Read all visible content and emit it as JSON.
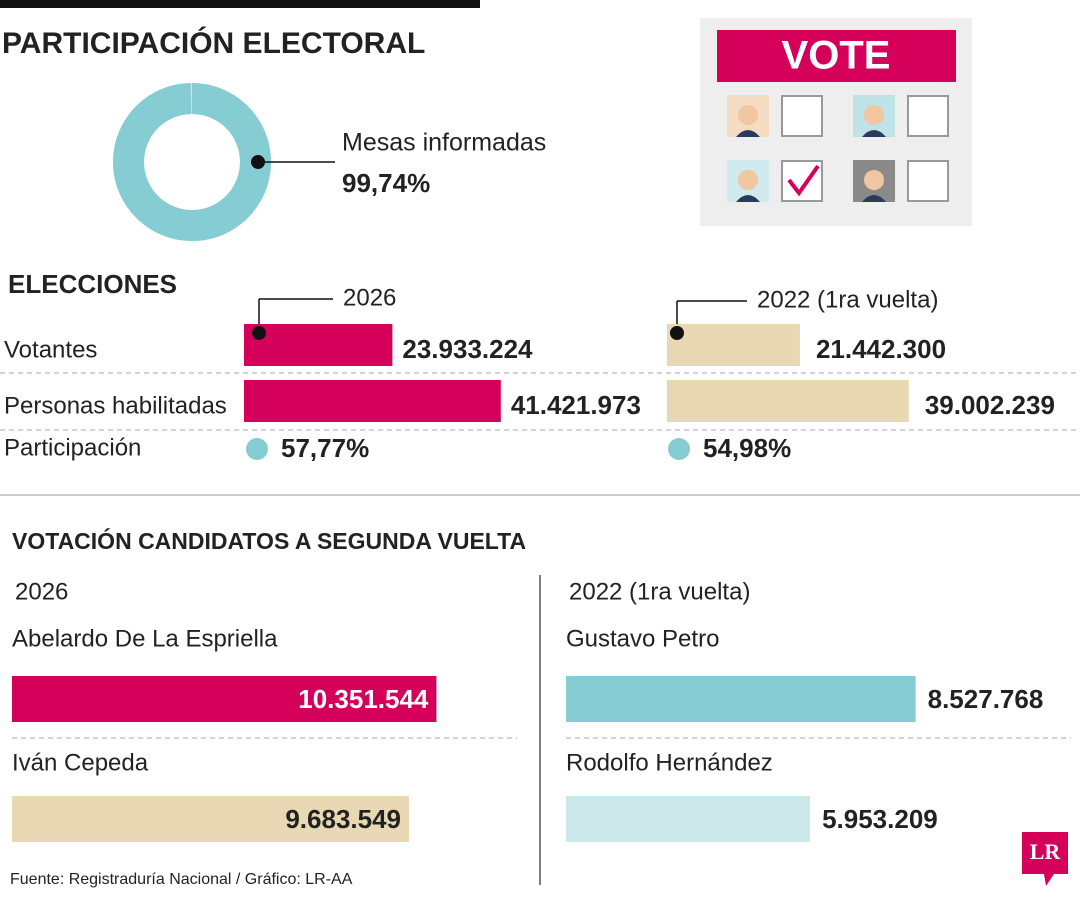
{
  "title": "PARTICIPACIÓN ELECTORAL",
  "ballot": {
    "header": "VOTE"
  },
  "source": "Fuente: Registraduría Nacional / Gráfico: LR-AA",
  "logo": "LR",
  "chart_data": [
    {
      "type": "donut",
      "label": "Mesas informadas",
      "values": [
        99.74
      ],
      "value_labels": [
        "99,74%"
      ],
      "color": "#86cdd3"
    },
    {
      "type": "bar",
      "title": "ELECCIONES",
      "categories": [
        "Votantes",
        "Personas habilitadas"
      ],
      "series": [
        {
          "name": "2026",
          "color": "#d5005a",
          "values": [
            23933224,
            41421973
          ],
          "value_labels": [
            "23.933.224",
            "41.421.973"
          ]
        },
        {
          "name": "2022 (1ra vuelta)",
          "color": "#e8d8b4",
          "values": [
            21442300,
            39002239
          ],
          "value_labels": [
            "21.442.300",
            "39.002.239"
          ]
        }
      ],
      "participation": {
        "label": "Participación",
        "values": [
          57.77,
          54.98
        ],
        "value_labels": [
          "57,77%",
          "54,98%"
        ],
        "color": "#86cdd3"
      }
    },
    {
      "type": "candidates",
      "title": "VOTACIÓN CANDIDATOS A SEGUNDA VUELTA",
      "groups": [
        {
          "name": "2026",
          "categories": [
            "Abelardo De La Espriella",
            "Iván Cepeda"
          ],
          "values": [
            10351544,
            9683549
          ],
          "value_labels": [
            "10.351.544",
            "9.683.549"
          ],
          "colors": [
            "#d5005a",
            "#e8d8b4"
          ]
        },
        {
          "name": "2022 (1ra vuelta)",
          "categories": [
            "Gustavo Petro",
            "Rodolfo Hernández"
          ],
          "values": [
            8527768,
            5953209
          ],
          "value_labels": [
            "8.527.768",
            "5.953.209"
          ],
          "colors": [
            "#86cdd3",
            "#cde8ea"
          ]
        }
      ]
    }
  ]
}
